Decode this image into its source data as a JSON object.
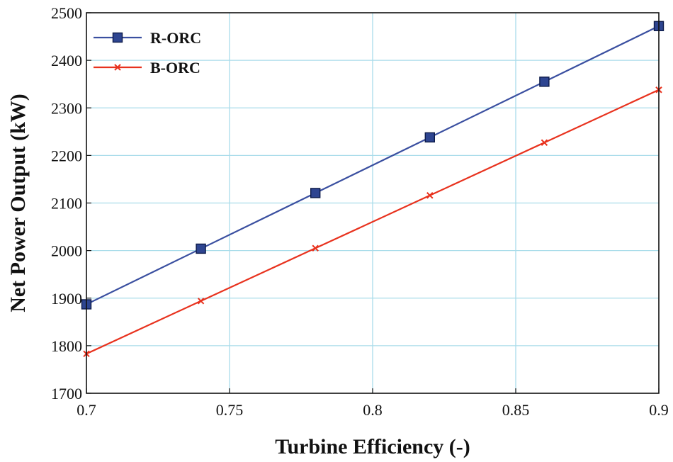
{
  "chart_data": {
    "type": "line",
    "title": "",
    "xlabel": "Turbine Efficiency (-)",
    "ylabel": "Net Power Output (kW)",
    "xlim": [
      0.7,
      0.9
    ],
    "ylim": [
      1700,
      2500
    ],
    "xticks": [
      0.7,
      0.75,
      0.8,
      0.85,
      0.9
    ],
    "xtick_labels": [
      "0.7",
      "0.75",
      "0.8",
      "0.85",
      "0.9"
    ],
    "yticks": [
      1700,
      1800,
      1900,
      2000,
      2100,
      2200,
      2300,
      2400,
      2500
    ],
    "ytick_labels": [
      "1700",
      "1800",
      "1900",
      "2000",
      "2100",
      "2200",
      "2300",
      "2400",
      "2500"
    ],
    "grid": true,
    "legend_position": "top-left",
    "series": [
      {
        "name": "R-ORC",
        "color": "#3a4fa0",
        "marker": "square",
        "marker_color": "#2e4591",
        "x": [
          0.7,
          0.74,
          0.78,
          0.82,
          0.86,
          0.9
        ],
        "y": [
          1887,
          2004,
          2121,
          2238,
          2355,
          2472
        ]
      },
      {
        "name": "B-ORC",
        "color": "#e8321e",
        "marker": "x",
        "marker_color": "#e8321e",
        "x": [
          0.7,
          0.74,
          0.78,
          0.82,
          0.86,
          0.9
        ],
        "y": [
          1783,
          1894,
          2005,
          2116,
          2227,
          2338
        ]
      }
    ]
  },
  "colors": {
    "grid": "#a9dcea",
    "frame": "#111111"
  }
}
